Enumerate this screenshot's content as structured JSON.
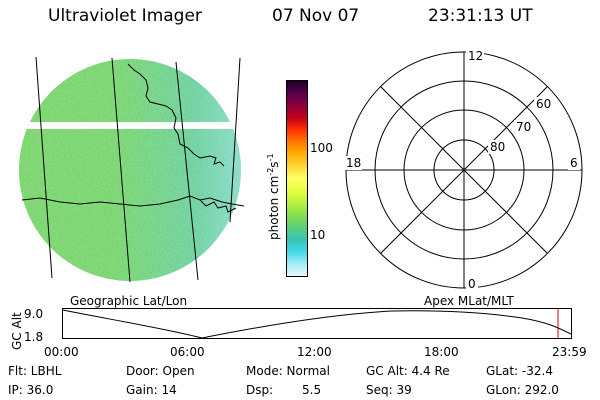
{
  "header": {
    "title": "Ultraviolet Imager",
    "date": "07 Nov 07",
    "time": "23:31:13 UT"
  },
  "globe_label": "Geographic Lat/Lon",
  "polar": {
    "label": "Apex MLat/MLT",
    "mlt": [
      "12",
      "18",
      "6",
      "0"
    ],
    "lat": [
      "60",
      "70",
      "80"
    ]
  },
  "colorbar": {
    "unit_label": "photon cm",
    "unit_exp1": "-2",
    "unit_s": "s",
    "unit_exp2": "-1",
    "ticks": [
      "100",
      "10"
    ],
    "colors": [
      "#1a0020",
      "#5a0050",
      "#8a0038",
      "#c0001c",
      "#ff3000",
      "#ff7a00",
      "#ffb000",
      "#ffd83a",
      "#ffff60",
      "#e4ff40",
      "#b8f040",
      "#86e04c",
      "#5ad078",
      "#38c4b4",
      "#40d8e8",
      "#a4ecf4",
      "#e4f8fc"
    ]
  },
  "timeline": {
    "ylabel": "GC Alt",
    "ymax": "9.0",
    "ymin": "1.8",
    "ticks": [
      "00:00",
      "06:00",
      "12:00",
      "18:00",
      "23:59"
    ]
  },
  "footer": {
    "row1": [
      "Flt: LBHL",
      "Door: Open",
      "Mode: Normal",
      "GC Alt: 4.4 Re",
      "GLat: -32.4"
    ],
    "row2": [
      "IP: 36.0",
      "Gain: 14",
      "Dsp:",
      "5.5",
      "Seq: 39",
      "GLon: 292.0"
    ]
  }
}
